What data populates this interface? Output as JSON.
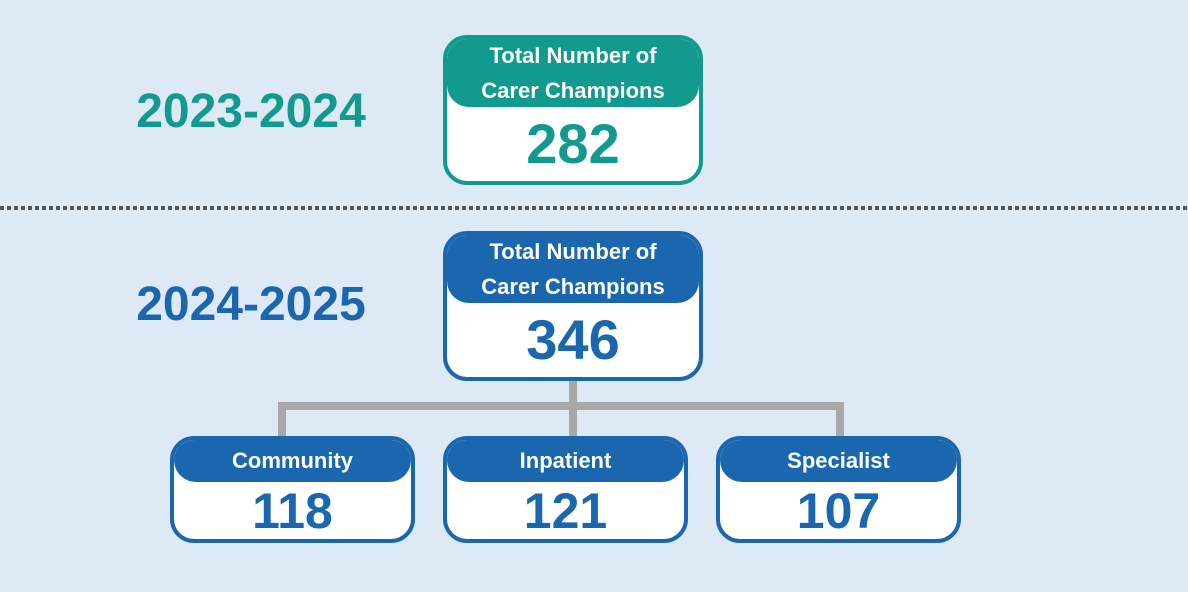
{
  "sections": [
    {
      "year": "2023-2024",
      "total": {
        "label": "Total Number of Carer Champions",
        "value": 282
      }
    },
    {
      "year": "2024-2025",
      "total": {
        "label": "Total Number of Carer Champions",
        "value": 346
      },
      "breakdown": [
        {
          "label": "Community",
          "value": 118
        },
        {
          "label": "Inpatient",
          "value": 121
        },
        {
          "label": "Specialist",
          "value": 107
        }
      ]
    }
  ]
}
